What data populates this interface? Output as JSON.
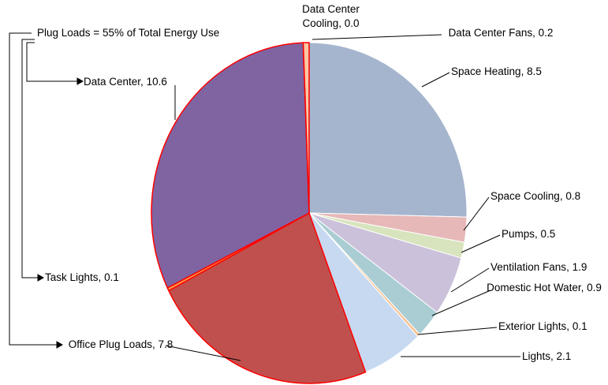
{
  "chart_data": {
    "type": "pie",
    "annotation": "Plug Loads = 55% of Total Energy Use",
    "categories": [
      "Space Heating",
      "Space Cooling",
      "Pumps",
      "Ventilation Fans",
      "Domestic Hot Water",
      "Exterior Lights",
      "Lights",
      "Office Plug Loads",
      "Task Lights",
      "Data Center",
      "Data Center Cooling",
      "Data Center Fans"
    ],
    "values": [
      8.5,
      0.8,
      0.5,
      1.9,
      0.9,
      0.1,
      2.1,
      7.8,
      0.1,
      10.6,
      0.0,
      0.2
    ],
    "value_labels": [
      "8.5",
      "0.8",
      "0.5",
      "1.9",
      "0.9",
      "0.1",
      "2.1",
      "7.8",
      "0.1",
      "10.6",
      "0.0",
      "0.2"
    ],
    "colors": [
      "#a5b5ce",
      "#e6b8b7",
      "#d7e4bd",
      "#ccc1da",
      "#a9cdd3",
      "#fac090",
      "#c6d9f1",
      "#c0504d",
      "#f79646",
      "#8064a2",
      "#e46c0a",
      "#fbc7a3"
    ]
  }
}
